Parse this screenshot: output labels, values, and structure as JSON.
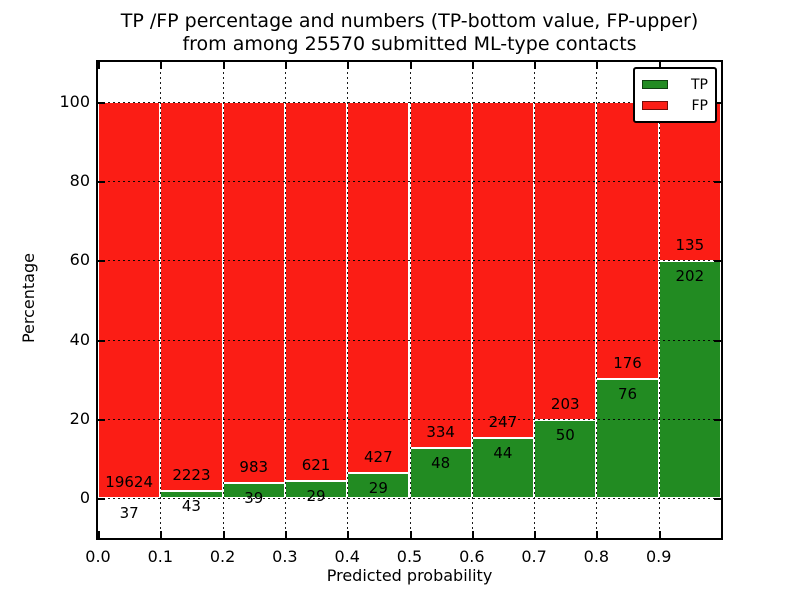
{
  "figure_title": {
    "line1": "TP /FP percentage and numbers (TP-bottom value, FP-upper)",
    "line2": "from among 25570 submitted ML-type contacts"
  },
  "chart_data": {
    "type": "bar",
    "variant": "stacked-100-percent",
    "title": "TP /FP percentage and numbers (TP-bottom value, FP-upper) from among 25570 submitted ML-type contacts",
    "xlabel": "Predicted probability",
    "ylabel": "Percentage",
    "total_contacts": 25570,
    "bin_edges": [
      0.0,
      0.1,
      0.2,
      0.3,
      0.4,
      0.5,
      0.6,
      0.7,
      0.8,
      0.9,
      1.0
    ],
    "xtick_labels": [
      "0.0",
      "0.1",
      "0.2",
      "0.3",
      "0.4",
      "0.5",
      "0.6",
      "0.7",
      "0.8",
      "0.9"
    ],
    "yticks": [
      0,
      20,
      40,
      60,
      80,
      100
    ],
    "ytick_labels": [
      "0",
      "20",
      "40",
      "60",
      "80",
      "100"
    ],
    "xlim": [
      0.0,
      1.0
    ],
    "ylim": [
      -10,
      110
    ],
    "grid": "dotted, drawn above bars",
    "series": [
      {
        "name": "TP",
        "color": "#228b22",
        "counts": [
          37,
          43,
          39,
          29,
          29,
          48,
          44,
          50,
          76,
          202
        ]
      },
      {
        "name": "FP",
        "color": "#fb1d15",
        "counts": [
          19624,
          2223,
          983,
          621,
          427,
          334,
          247,
          203,
          176,
          135
        ]
      }
    ],
    "tp_percent_per_bin": [
      0.19,
      1.9,
      3.82,
      4.46,
      6.36,
      12.57,
      15.12,
      19.76,
      30.16,
      59.94
    ],
    "legend": {
      "position": "upper-right",
      "entries": [
        "TP",
        "FP"
      ]
    }
  },
  "colors": {
    "tp_green": "#228b22",
    "fp_red": "#fb1d15",
    "bar_edge": "#ffffff",
    "grid": "#000000",
    "text": "#000000",
    "background": "#ffffff"
  }
}
